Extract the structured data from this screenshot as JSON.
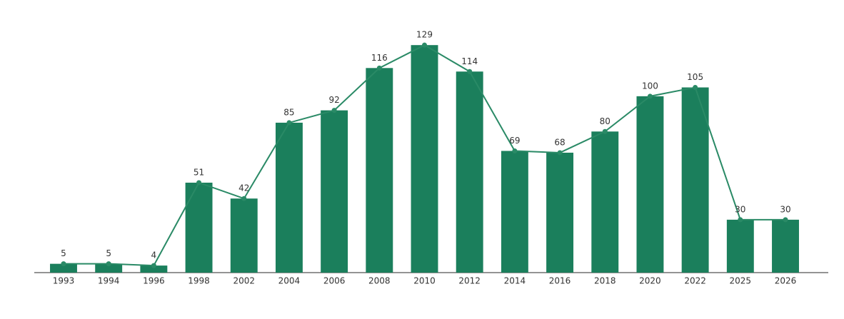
{
  "chart_data": {
    "type": "bar",
    "categories": [
      "1993",
      "1994",
      "1996",
      "1998",
      "2002",
      "2004",
      "2006",
      "2008",
      "2010",
      "2012",
      "2014",
      "2016",
      "2018",
      "2020",
      "2022",
      "2025",
      "2026"
    ],
    "values": [
      5,
      5,
      4,
      51,
      42,
      85,
      92,
      116,
      129,
      114,
      69,
      68,
      80,
      100,
      105,
      30,
      30
    ],
    "color": "#1b7f5c",
    "line_color": "#2a8a66",
    "line": true,
    "ylim": [
      0,
      140
    ]
  }
}
